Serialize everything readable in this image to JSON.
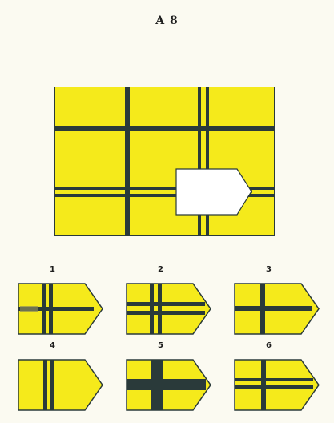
{
  "title": "A 8",
  "colors": {
    "yellow": "#f5ea1b",
    "line": "#2a3a3a",
    "paper": "#fbfaf1"
  },
  "options": [
    {
      "number": "1"
    },
    {
      "number": "2"
    },
    {
      "number": "3"
    },
    {
      "number": "4"
    },
    {
      "number": "5"
    },
    {
      "number": "6"
    }
  ]
}
